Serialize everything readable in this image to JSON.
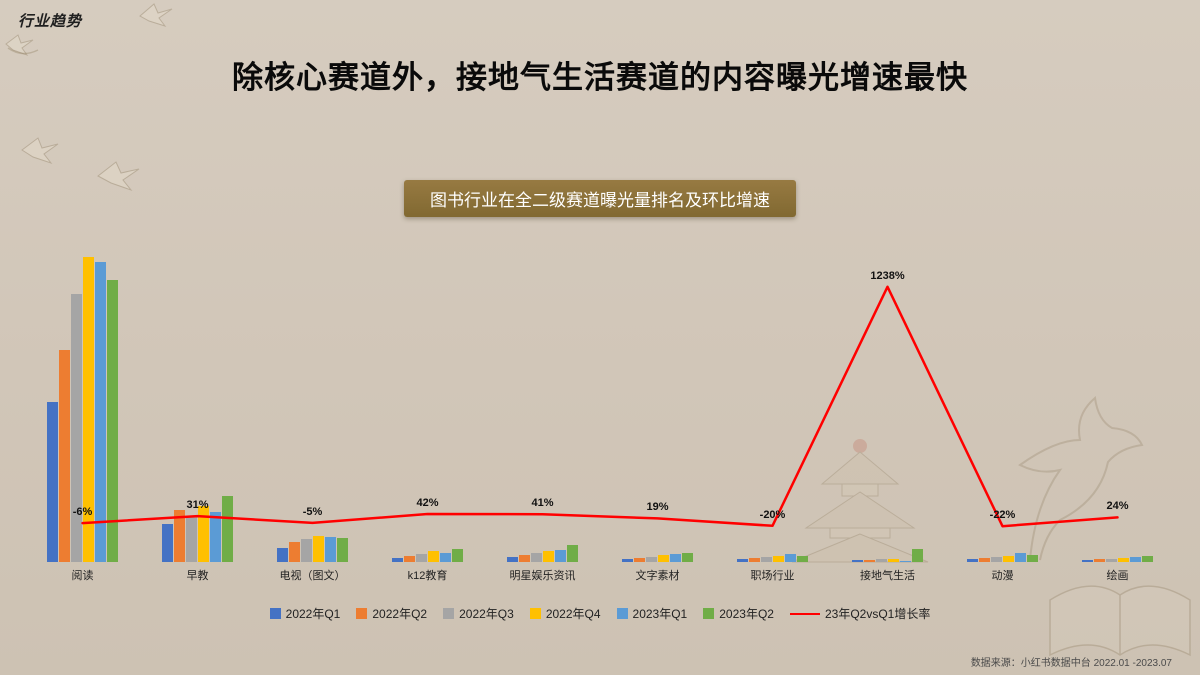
{
  "slide": {
    "corner_label": "行业趋势",
    "title": "除核心赛道外，接地气生活赛道的内容曝光增速最快",
    "badge": "图书行业在全二级赛道曝光量排名及环比增速",
    "source": "数据来源：小红书数据中台 2022.01 -2023.07"
  },
  "colors": {
    "background": "#d1c6b8",
    "badge_bg": "#8d7340",
    "title_text": "#0a0a0a",
    "line": "#ff0000"
  },
  "chart_data": {
    "type": "bar",
    "title": "图书行业在全二级赛道曝光量排名及环比增速",
    "categories": [
      "阅读",
      "早教",
      "电视（图文）",
      "k12教育",
      "明星娱乐资讯",
      "文字素材",
      "职场行业",
      "接地气生活",
      "动漫",
      "绘画"
    ],
    "series": [
      {
        "name": "2022年Q1",
        "color": "#4472c4",
        "values": [
          160,
          38,
          14,
          4,
          5,
          3,
          3,
          2,
          3,
          2
        ]
      },
      {
        "name": "2022年Q2",
        "color": "#ed7d31",
        "values": [
          212,
          52,
          20,
          6,
          7,
          4,
          4,
          2,
          4,
          3
        ]
      },
      {
        "name": "2022年Q3",
        "color": "#a5a5a5",
        "values": [
          268,
          46,
          23,
          8,
          9,
          5,
          5,
          3,
          5,
          3
        ]
      },
      {
        "name": "2022年Q4",
        "color": "#ffc000",
        "values": [
          305,
          56,
          26,
          11,
          11,
          7,
          6,
          3,
          6,
          4
        ]
      },
      {
        "name": "2023年Q1",
        "color": "#5b9bd5",
        "values": [
          300,
          50,
          25,
          9,
          12,
          8,
          8,
          1,
          9,
          5
        ]
      },
      {
        "name": "2023年Q2",
        "color": "#70ad47",
        "values": [
          282,
          66,
          24,
          13,
          17,
          9.5,
          6.4,
          13.4,
          7,
          6.2
        ]
      }
    ],
    "line": {
      "name": "23年Q2vsQ1增长率",
      "color": "#ff0000",
      "values_pct": [
        -6,
        31,
        -5,
        42,
        41,
        19,
        -20,
        1238,
        -22,
        24
      ],
      "labels": [
        "-6%",
        "31%",
        "-5%",
        "42%",
        "41%",
        "19%",
        "-20%",
        "1238%",
        "-22%",
        "24%"
      ]
    },
    "ylim": [
      0,
      320
    ],
    "grid": false,
    "legend_position": "bottom",
    "note": "bar values are relative exposure estimates read from pixel heights; line is QoQ growth rate"
  }
}
